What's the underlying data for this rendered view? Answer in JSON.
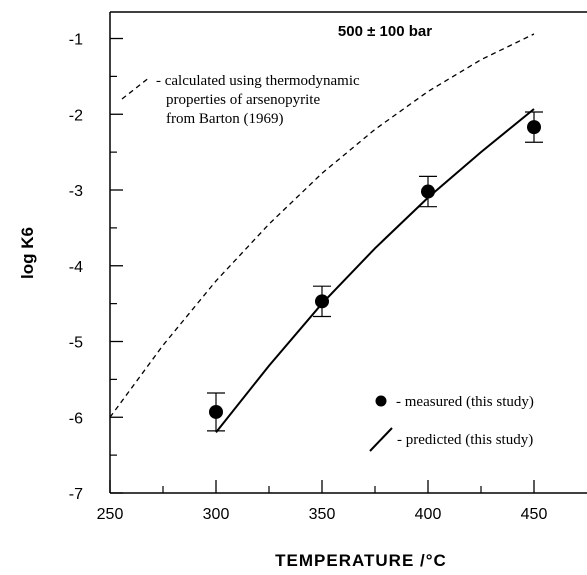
{
  "chart_data": {
    "type": "scatter",
    "title": "500 ± 100 bar",
    "xlabel": "TEMPERATURE  /°C",
    "ylabel": "log K6",
    "xlim": [
      250,
      475
    ],
    "ylim": [
      -7,
      -0.65
    ],
    "x_ticks": [
      250,
      300,
      350,
      400,
      450
    ],
    "x_tick_labels": [
      "250",
      "300",
      "350",
      "400",
      "450"
    ],
    "y_ticks": [
      -1,
      -2,
      -3,
      -4,
      -5,
      -6,
      -7
    ],
    "y_tick_labels": [
      "-1",
      "-2",
      "-3",
      "-4",
      "-5",
      "-6",
      "-7"
    ],
    "grid": false,
    "series": [
      {
        "name": "- measured (this study)",
        "kind": "points",
        "marker": "filled-circle",
        "x": [
          300,
          350,
          400,
          450
        ],
        "y": [
          -5.93,
          -4.47,
          -3.02,
          -2.17
        ],
        "yerr": [
          0.25,
          0.2,
          0.2,
          0.2
        ]
      },
      {
        "name": "- predicted (this study)",
        "kind": "line",
        "style": "solid",
        "x": [
          300,
          325,
          350,
          375,
          400,
          425,
          450
        ],
        "y": [
          -6.2,
          -5.32,
          -4.5,
          -3.77,
          -3.1,
          -2.5,
          -1.93
        ]
      },
      {
        "name": "- calculated using thermodynamic properties of arsenopyrite from Barton (1969)",
        "kind": "line",
        "style": "dashed",
        "x": [
          250,
          275,
          300,
          325,
          350,
          375,
          400,
          425,
          450
        ],
        "y": [
          -6.0,
          -5.05,
          -4.2,
          -3.45,
          -2.78,
          -2.2,
          -1.7,
          -1.28,
          -0.94
        ]
      }
    ],
    "legend": {
      "dashed_lines": [
        "- calculated using thermodynamic",
        "properties of arsenopyrite",
        "from Barton (1969)"
      ],
      "measured": "- measured (this study)",
      "predicted": "- predicted (this study)"
    }
  }
}
